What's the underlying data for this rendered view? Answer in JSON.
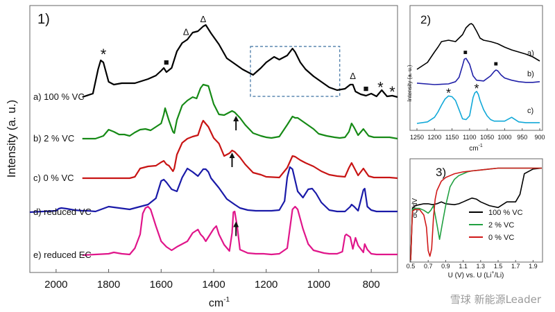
{
  "chart_data": [
    {
      "type": "line",
      "panel_label": "1)",
      "xlabel": "cm",
      "xlabel_sup": "-1",
      "ylabel": "Intensity (a. u.)",
      "xlim": [
        2100,
        700
      ],
      "x_ticks": [
        2000,
        1800,
        1600,
        1400,
        1200,
        1000,
        800
      ],
      "x_ticks_labels": [
        "2000",
        "1800",
        "1600",
        "1400",
        "1200",
        "1000",
        "800"
      ],
      "series": [
        {
          "name": "a) 100 % VC",
          "color": "#000000",
          "baseline": 0,
          "x": [
            1900,
            1860,
            1840,
            1830,
            1820,
            1800,
            1780,
            1750,
            1700,
            1650,
            1620,
            1600,
            1590,
            1580,
            1560,
            1540,
            1520,
            1500,
            1480,
            1460,
            1440,
            1430,
            1410,
            1380,
            1350,
            1320,
            1290,
            1250,
            1220,
            1200,
            1170,
            1150,
            1120,
            1100,
            1090,
            1070,
            1050,
            1020,
            990,
            960,
            930,
            900,
            880,
            870,
            860,
            840,
            820,
            800,
            780,
            760,
            740,
            720,
            700
          ],
          "y": [
            0,
            5,
            40,
            53,
            50,
            22,
            18,
            20,
            20,
            26,
            31,
            38,
            42,
            36,
            42,
            66,
            78,
            83,
            93,
            95,
            102,
            104,
            92,
            76,
            56,
            48,
            40,
            32,
            42,
            50,
            58,
            54,
            60,
            70,
            65,
            50,
            40,
            30,
            22,
            14,
            10,
            12,
            18,
            18,
            8,
            4,
            2,
            5,
            1,
            10,
            1,
            2,
            0
          ]
        },
        {
          "name": "b) 2 % VC",
          "color": "#168a16",
          "baseline": 0,
          "x": [
            1900,
            1850,
            1820,
            1800,
            1780,
            1760,
            1740,
            1720,
            1700,
            1680,
            1660,
            1640,
            1620,
            1600,
            1590,
            1585,
            1570,
            1555,
            1550,
            1540,
            1520,
            1500,
            1480,
            1465,
            1450,
            1440,
            1420,
            1400,
            1380,
            1360,
            1330,
            1320,
            1300,
            1280,
            1250,
            1220,
            1200,
            1180,
            1150,
            1120,
            1100,
            1090,
            1080,
            1050,
            1020,
            1000,
            970,
            940,
            920,
            900,
            885,
            875,
            865,
            850,
            830,
            810,
            790,
            760,
            730,
            700
          ],
          "y": [
            0,
            0,
            4,
            13,
            10,
            6,
            6,
            4,
            9,
            13,
            14,
            12,
            17,
            22,
            35,
            44,
            26,
            10,
            8,
            27,
            48,
            55,
            60,
            58,
            73,
            78,
            76,
            50,
            35,
            34,
            40,
            38,
            30,
            20,
            8,
            4,
            2,
            1,
            3,
            20,
            32,
            30,
            30,
            22,
            14,
            7,
            4,
            2,
            1,
            2,
            10,
            22,
            16,
            5,
            14,
            4,
            2,
            2,
            2,
            0
          ]
        },
        {
          "name": "c)  0 % VC",
          "color": "#c81414",
          "baseline": 0,
          "x": [
            1900,
            1720,
            1700,
            1680,
            1650,
            1620,
            1600,
            1590,
            1580,
            1570,
            1555,
            1550,
            1540,
            1520,
            1500,
            1480,
            1460,
            1445,
            1440,
            1420,
            1400,
            1380,
            1360,
            1340,
            1330,
            1320,
            1300,
            1280,
            1250,
            1220,
            1200,
            1150,
            1120,
            1100,
            1090,
            1070,
            1050,
            1020,
            990,
            960,
            930,
            900,
            885,
            875,
            865,
            850,
            830,
            810,
            790,
            760,
            730,
            700
          ],
          "y": [
            0,
            0,
            2,
            14,
            17,
            18,
            23,
            25,
            20,
            18,
            10,
            14,
            34,
            51,
            57,
            60,
            62,
            79,
            83,
            74,
            58,
            50,
            32,
            36,
            40,
            38,
            30,
            20,
            8,
            5,
            2,
            1,
            15,
            32,
            31,
            26,
            22,
            17,
            10,
            5,
            3,
            2,
            15,
            22,
            15,
            4,
            14,
            3,
            1,
            1,
            1,
            0
          ]
        },
        {
          "name": "d) reduced  VC",
          "color": "#1a1aa8",
          "baseline": 0,
          "x": [
            2100,
            2000,
            1990,
            1980,
            1960,
            1930,
            1900,
            1880,
            1850,
            1800,
            1760,
            1720,
            1680,
            1650,
            1620,
            1600,
            1590,
            1580,
            1560,
            1540,
            1520,
            1500,
            1480,
            1460,
            1440,
            1430,
            1420,
            1410,
            1380,
            1350,
            1320,
            1300,
            1270,
            1240,
            1210,
            1180,
            1150,
            1130,
            1120,
            1110,
            1100,
            1080,
            1060,
            1040,
            1025,
            1010,
            990,
            960,
            930,
            900,
            880,
            875,
            865,
            850,
            830,
            825,
            815,
            800,
            780,
            760,
            740,
            720,
            700
          ],
          "y": [
            0,
            2,
            5,
            6,
            5,
            3,
            2,
            2,
            1,
            8,
            6,
            4,
            8,
            11,
            20,
            45,
            47,
            43,
            33,
            30,
            50,
            63,
            58,
            52,
            62,
            62,
            58,
            49,
            35,
            19,
            11,
            6,
            3,
            2,
            2,
            2,
            3,
            16,
            50,
            65,
            62,
            30,
            21,
            33,
            34,
            27,
            14,
            3,
            1,
            1,
            8,
            11,
            8,
            2,
            32,
            34,
            8,
            3,
            1,
            1,
            1,
            1,
            1
          ]
        },
        {
          "name": "e) reduced  EC",
          "color": "#e0158a",
          "baseline": 0,
          "x": [
            1900,
            1850,
            1800,
            1780,
            1750,
            1720,
            1700,
            1690,
            1680,
            1670,
            1660,
            1650,
            1640,
            1620,
            1600,
            1580,
            1560,
            1540,
            1500,
            1480,
            1460,
            1450,
            1440,
            1430,
            1400,
            1390,
            1380,
            1360,
            1340,
            1330,
            1325,
            1320,
            1310,
            1300,
            1270,
            1240,
            1210,
            1180,
            1150,
            1120,
            1100,
            1090,
            1080,
            1060,
            1040,
            1020,
            1000,
            980,
            960,
            930,
            910,
            900,
            895,
            880,
            870,
            860,
            850,
            830,
            825,
            815,
            800,
            780,
            760,
            740,
            700
          ],
          "y": [
            0,
            1,
            2,
            4,
            2,
            1,
            10,
            20,
            30,
            60,
            68,
            70,
            66,
            42,
            20,
            12,
            7,
            12,
            20,
            32,
            37,
            30,
            26,
            20,
            38,
            42,
            30,
            15,
            6,
            32,
            62,
            63,
            40,
            8,
            3,
            2,
            2,
            1,
            2,
            10,
            66,
            70,
            66,
            38,
            16,
            7,
            5,
            3,
            2,
            2,
            5,
            28,
            30,
            26,
            9,
            25,
            14,
            4,
            16,
            8,
            2,
            1,
            1,
            1,
            1
          ]
        }
      ],
      "annotations": [
        {
          "text": "*",
          "x": 1820,
          "series": 0,
          "dy": 10
        },
        {
          "text": "■",
          "x": 1580,
          "series": 0,
          "dy": 10
        },
        {
          "text": "Δ",
          "x": 1505,
          "series": 0,
          "dy": 8
        },
        {
          "text": "Δ",
          "x": 1440,
          "series": 0,
          "dy": 6
        },
        {
          "text": "Δ",
          "x": 870,
          "series": 0,
          "dy": 8
        },
        {
          "text": "■",
          "x": 820,
          "series": 0,
          "dy": 6
        },
        {
          "text": "*",
          "x": 765,
          "series": 0,
          "dy": 5
        },
        {
          "text": "*",
          "x": 720,
          "series": 0,
          "dy": 4
        }
      ],
      "arrows": [
        {
          "x": 1315,
          "series": 1
        },
        {
          "x": 1330,
          "series": 2
        },
        {
          "x": 1315,
          "series": 4
        }
      ],
      "highlight_box": {
        "x": [
          1260,
          920
        ],
        "color": "#3a6fa0"
      }
    },
    {
      "type": "line",
      "panel_label": "2)",
      "xlabel": "cm",
      "xlabel_sup": "-1",
      "ylabel": "Intensity (a. u.)",
      "xlim": [
        1250,
        900
      ],
      "x_ticks": [
        1250,
        1200,
        1150,
        1100,
        1050,
        1000,
        950,
        900
      ],
      "x_ticks_labels": [
        "1250",
        "1200",
        "1150",
        "1100",
        "1050",
        "1000",
        "950",
        "900"
      ],
      "series": [
        {
          "name": "a)",
          "color": "#000000",
          "x": [
            1250,
            1220,
            1200,
            1190,
            1180,
            1160,
            1140,
            1120,
            1110,
            1100,
            1095,
            1090,
            1080,
            1070,
            1060,
            1040,
            1020,
            1000,
            980,
            960,
            940,
            920,
            900
          ],
          "y": [
            0,
            10,
            25,
            32,
            40,
            42,
            40,
            50,
            60,
            65,
            66,
            64,
            55,
            45,
            42,
            40,
            37,
            32,
            28,
            25,
            22,
            18,
            12
          ]
        },
        {
          "name": "b)",
          "color": "#2020a8",
          "x": [
            1250,
            1200,
            1160,
            1140,
            1130,
            1120,
            1115,
            1110,
            1100,
            1090,
            1080,
            1060,
            1040,
            1030,
            1025,
            1020,
            1010,
            1000,
            980,
            960,
            940,
            920,
            900
          ],
          "y": [
            2,
            0,
            1,
            4,
            10,
            26,
            35,
            36,
            28,
            12,
            6,
            5,
            12,
            18,
            20,
            19,
            13,
            9,
            6,
            4,
            3,
            3,
            4
          ]
        },
        {
          "name": "c)",
          "color": "#10a8d8",
          "x": [
            1250,
            1220,
            1200,
            1190,
            1180,
            1170,
            1160,
            1150,
            1140,
            1130,
            1120,
            1110,
            1100,
            1095,
            1090,
            1085,
            1080,
            1075,
            1070,
            1060,
            1050,
            1040,
            1030,
            1000,
            980,
            960,
            940,
            920,
            900
          ],
          "y": [
            0,
            2,
            8,
            15,
            24,
            32,
            36,
            35,
            30,
            18,
            6,
            5,
            10,
            22,
            34,
            40,
            42,
            38,
            30,
            18,
            10,
            5,
            3,
            3,
            8,
            2,
            1,
            1,
            1
          ]
        }
      ],
      "annotations": [
        {
          "text": "■",
          "x": 1112,
          "series": 1,
          "dy": 6
        },
        {
          "text": "■",
          "x": 1025,
          "series": 1,
          "dy": 6
        },
        {
          "text": "*",
          "x": 1160,
          "series": 2,
          "dy": 6
        },
        {
          "text": "*",
          "x": 1080,
          "series": 2,
          "dy": 6
        }
      ]
    },
    {
      "type": "line",
      "panel_label": "3)",
      "xlabel": "U (V) vs. U (Li",
      "xlabel_sup": "+",
      "xlabel_tail": "/Li)",
      "ylabel": "dQ/dV",
      "xlim": [
        0.5,
        2.0
      ],
      "ylim": [
        -100,
        5
      ],
      "x_ticks": [
        0.5,
        0.7,
        0.9,
        1.1,
        1.3,
        1.5,
        1.7,
        1.9
      ],
      "x_ticks_labels": [
        "0.5",
        "0.7",
        "0.9",
        "1.1",
        "1.3",
        "1.5",
        "1.7",
        "1.9"
      ],
      "series": [
        {
          "name": "100 % VC",
          "color": "#000000",
          "x": [
            0.5,
            0.52,
            0.55,
            0.6,
            0.65,
            0.7,
            0.75,
            0.8,
            0.85,
            0.9,
            1.0,
            1.05,
            1.1,
            1.15,
            1.2,
            1.25,
            1.3,
            1.4,
            1.5,
            1.6,
            1.7,
            1.75,
            1.8,
            1.9,
            2.0
          ],
          "y": [
            -100,
            -45,
            -42,
            -41,
            -40,
            -40,
            -41,
            -40,
            -38,
            -40,
            -41,
            -40,
            -38,
            -36,
            -34,
            -35,
            -38,
            -42,
            -44,
            -38,
            -38,
            -30,
            -8,
            -3,
            -2
          ]
        },
        {
          "name": "2 % VC",
          "color": "#20a040",
          "x": [
            0.5,
            0.52,
            0.55,
            0.6,
            0.65,
            0.7,
            0.73,
            0.76,
            0.8,
            0.83,
            0.86,
            0.9,
            0.95,
            1.0,
            1.05,
            1.1,
            1.15,
            1.2,
            1.3,
            1.4,
            1.5,
            1.6,
            1.8,
            2.0
          ],
          "y": [
            -100,
            -46,
            -45,
            -45,
            -47,
            -50,
            -47,
            -42,
            -62,
            -78,
            -62,
            -42,
            -22,
            -14,
            -10,
            -8,
            -6,
            -5,
            -4,
            -3,
            -2,
            -2,
            -2,
            -2
          ]
        },
        {
          "name": "0 % VC",
          "color": "#d01818",
          "x": [
            0.5,
            0.52,
            0.55,
            0.6,
            0.65,
            0.68,
            0.7,
            0.72,
            0.74,
            0.76,
            0.78,
            0.8,
            0.85,
            0.9,
            0.95,
            1.0,
            1.1,
            1.2,
            1.3,
            1.4,
            1.5,
            1.6,
            1.8,
            2.0
          ],
          "y": [
            -100,
            -48,
            -46,
            -46,
            -52,
            -65,
            -90,
            -96,
            -88,
            -55,
            -35,
            -26,
            -16,
            -12,
            -10,
            -8,
            -6,
            -5,
            -4,
            -3,
            -2,
            -2,
            -2,
            -2
          ]
        }
      ]
    }
  ],
  "watermark": "雪球 新能源Leader"
}
